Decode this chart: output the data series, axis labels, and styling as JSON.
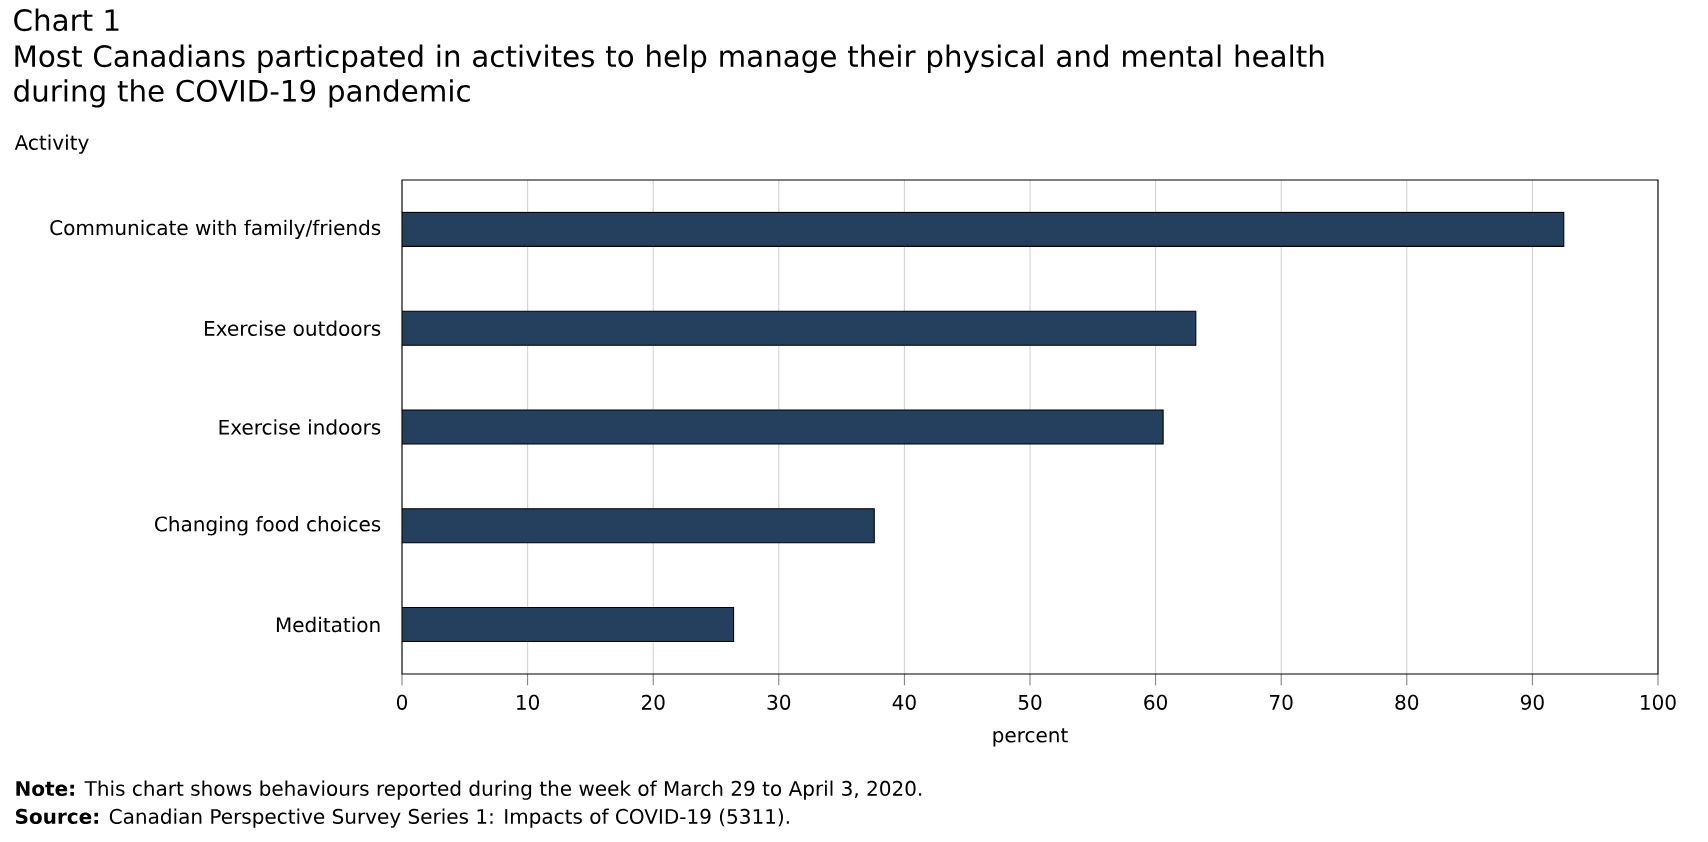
{
  "chart_data": {
    "type": "bar",
    "orientation": "horizontal",
    "title": "Chart 1",
    "subtitle": "Most Canadians particpated in activites to help manage their physical and mental health during the COVID-19 pandemic",
    "ylabel": "Activity",
    "xlabel": "percent",
    "categories": [
      "Communicate with family/friends",
      "Exercise outdoors",
      "Exercise indoors",
      "Changing food choices",
      "Meditation"
    ],
    "values": [
      92.5,
      63.2,
      60.6,
      37.6,
      26.4
    ],
    "color": "#253f5e",
    "xlim": [
      0,
      100
    ],
    "xticks": [
      0,
      10,
      20,
      30,
      40,
      50,
      60,
      70,
      80,
      90,
      100
    ],
    "grid": "x",
    "annotations": [
      "**Note:** This chart shows behaviours reported during the week of March 29 to April 3, 2020.",
      "**Source:** Canadian Perspective Survey Series 1: Impacts of COVID-19 (5311)."
    ]
  }
}
